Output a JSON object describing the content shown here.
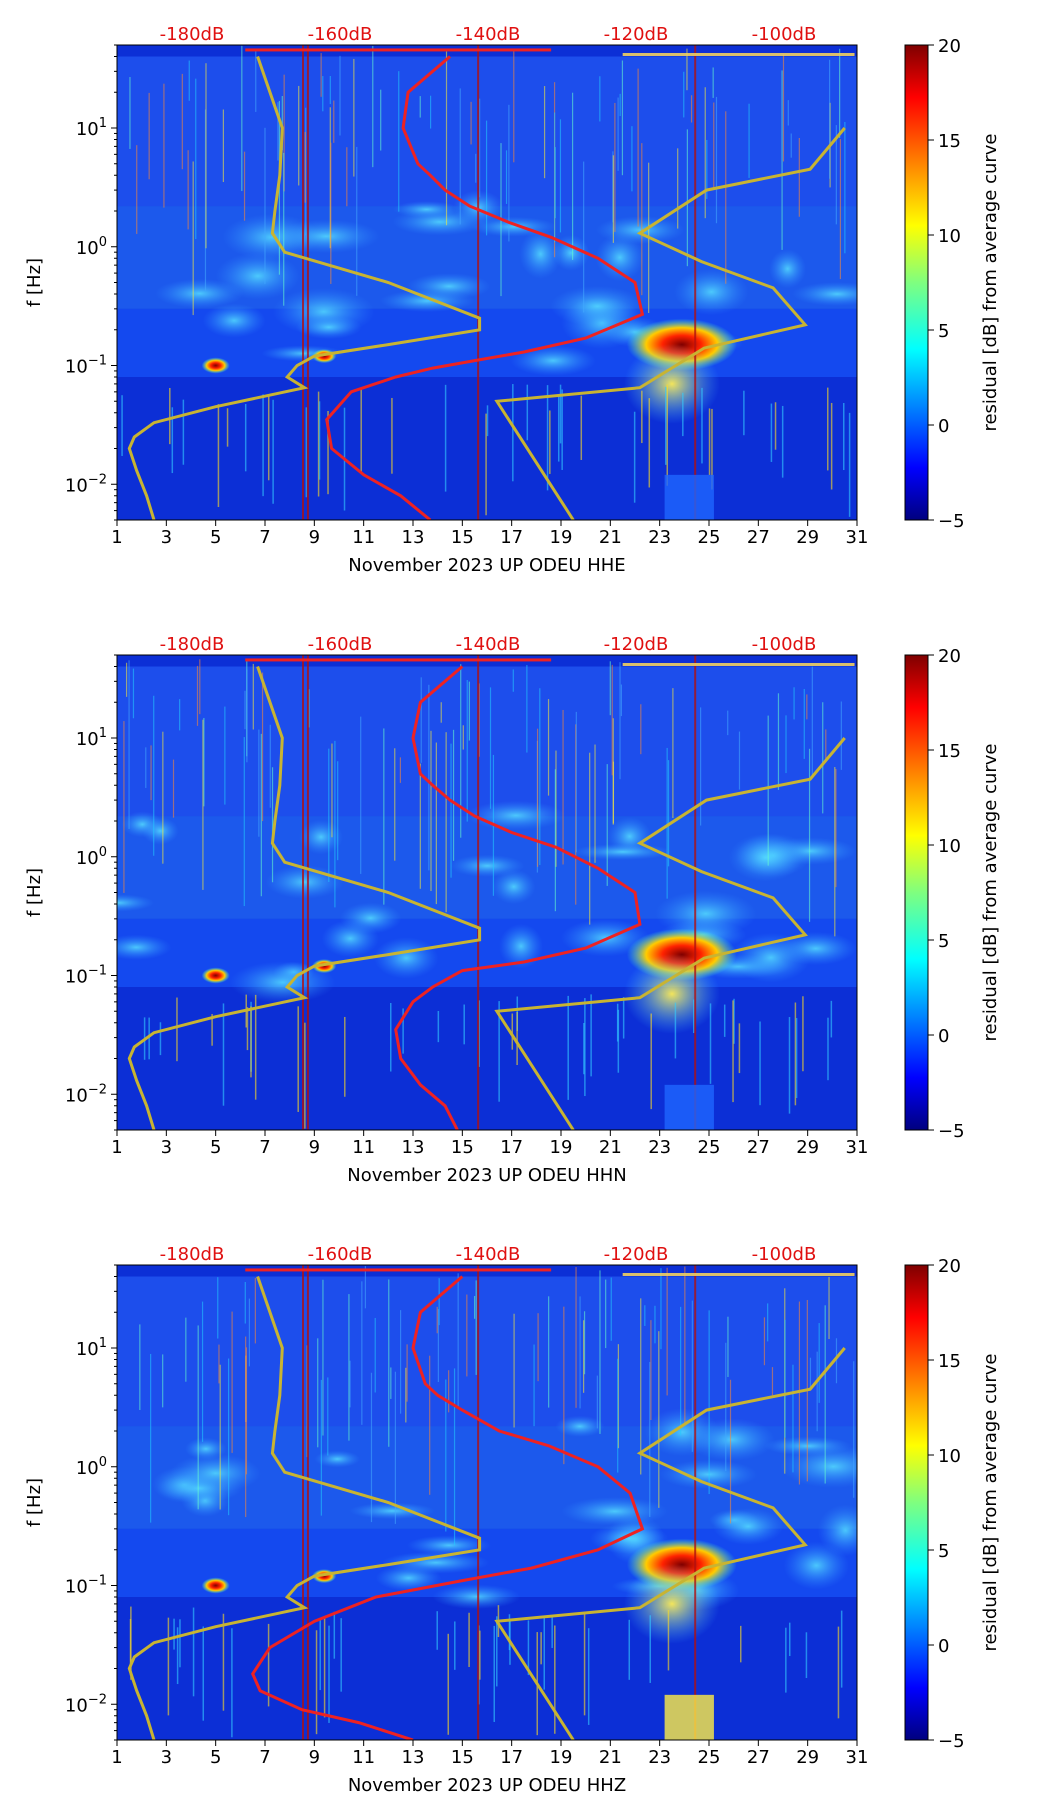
{
  "chart_data": [
    {
      "type": "heatmap",
      "xlabel": "November 2023 UP ODEU  HHE",
      "ylabel": "f [Hz]",
      "x_ticks": [
        "1",
        "3",
        "5",
        "7",
        "9",
        "11",
        "13",
        "15",
        "17",
        "19",
        "21",
        "23",
        "25",
        "27",
        "29",
        "31"
      ],
      "xlim": [
        1,
        31
      ],
      "ylim": [
        0.005,
        50
      ],
      "y_scale": "log",
      "y_ticks": [
        "10^-2",
        "10^-1",
        "10^0",
        "10^1"
      ],
      "top_axis_ticks": [
        "-180dB",
        "-160dB",
        "-140dB",
        "-120dB",
        "-100dB"
      ],
      "colorbar": {
        "label": "residual [dB] from average curve",
        "range": [
          -5,
          20
        ],
        "ticks": [
          "−5",
          "0",
          "5",
          "10",
          "15",
          "20"
        ]
      },
      "series": [
        {
          "color": "#ee2222",
          "x": [
            14.5,
            12.8,
            12.6,
            13.2,
            13.7,
            14.3,
            15.3,
            16.9,
            18.6,
            20.5,
            22.0,
            22.3,
            20.0,
            17.5,
            15.5,
            13.8,
            12.3,
            10.5,
            9.5,
            9.7,
            11.0,
            12.5,
            13.7
          ],
          "y": [
            40,
            20,
            10,
            5,
            4,
            3,
            2.2,
            1.6,
            1.2,
            0.8,
            0.5,
            0.27,
            0.17,
            0.13,
            0.11,
            0.095,
            0.08,
            0.06,
            0.035,
            0.02,
            0.012,
            0.008,
            0.005
          ]
        },
        {
          "color": "#c8b432",
          "x": [
            2.5,
            2.2,
            1.8,
            1.5,
            1.7,
            2.5,
            5.0,
            8.6,
            7.9,
            8.3,
            9.0,
            12.0,
            15.7,
            15.7,
            12.0,
            7.8,
            7.3,
            7.4,
            7.6,
            7.7,
            6.7
          ],
          "y": [
            0.005,
            0.008,
            0.013,
            0.02,
            0.025,
            0.033,
            0.045,
            0.065,
            0.08,
            0.1,
            0.12,
            0.15,
            0.2,
            0.25,
            0.5,
            0.9,
            1.3,
            2,
            4,
            10,
            40
          ]
        },
        {
          "color": "#c8b432",
          "x": [
            19.5,
            16.4,
            16.4,
            22.2,
            24.8,
            28.9,
            27.6,
            24.7,
            22.2,
            24.9,
            29.1,
            30.5
          ],
          "y": [
            0.005,
            0.05,
            0.05,
            0.065,
            0.14,
            0.22,
            0.45,
            0.75,
            1.3,
            3,
            4.5,
            10
          ]
        }
      ]
    },
    {
      "type": "heatmap",
      "xlabel": "November 2023 UP ODEU  HHN",
      "ylabel": "f [Hz]",
      "x_ticks": [
        "1",
        "3",
        "5",
        "7",
        "9",
        "11",
        "13",
        "15",
        "17",
        "19",
        "21",
        "23",
        "25",
        "27",
        "29",
        "31"
      ],
      "xlim": [
        1,
        31
      ],
      "ylim": [
        0.005,
        50
      ],
      "y_scale": "log",
      "y_ticks": [
        "10^-2",
        "10^-1",
        "10^0",
        "10^1"
      ],
      "top_axis_ticks": [
        "-180dB",
        "-160dB",
        "-140dB",
        "-120dB",
        "-100dB"
      ],
      "colorbar": {
        "label": "residual [dB] from average curve",
        "range": [
          -5,
          20
        ],
        "ticks": [
          "−5",
          "0",
          "5",
          "10",
          "15",
          "20"
        ]
      },
      "series": [
        {
          "color": "#ee2222",
          "x": [
            15.0,
            13.3,
            13.0,
            13.3,
            13.8,
            14.5,
            15.5,
            17.0,
            18.8,
            20.5,
            22.0,
            22.2,
            20.0,
            17.5,
            15.0,
            13.8,
            13.0,
            12.3,
            12.5,
            13.3,
            14.3,
            14.8
          ],
          "y": [
            40,
            20,
            10,
            5,
            4,
            3,
            2.2,
            1.6,
            1.2,
            0.8,
            0.5,
            0.27,
            0.17,
            0.13,
            0.11,
            0.08,
            0.06,
            0.035,
            0.02,
            0.012,
            0.008,
            0.005
          ]
        },
        {
          "color": "#c8b432",
          "x": [
            2.5,
            2.2,
            1.8,
            1.5,
            1.7,
            2.5,
            5.0,
            8.6,
            7.9,
            8.3,
            9.0,
            12.0,
            15.7,
            15.7,
            12.0,
            7.8,
            7.3,
            7.4,
            7.6,
            7.7,
            6.7
          ],
          "y": [
            0.005,
            0.008,
            0.013,
            0.02,
            0.025,
            0.033,
            0.045,
            0.065,
            0.08,
            0.1,
            0.12,
            0.15,
            0.2,
            0.25,
            0.5,
            0.9,
            1.3,
            2,
            4,
            10,
            40
          ]
        },
        {
          "color": "#c8b432",
          "x": [
            19.5,
            16.4,
            16.4,
            22.2,
            24.8,
            28.9,
            27.6,
            24.7,
            22.2,
            24.9,
            29.1,
            30.5
          ],
          "y": [
            0.005,
            0.05,
            0.05,
            0.065,
            0.14,
            0.22,
            0.45,
            0.75,
            1.3,
            3,
            4.5,
            10
          ]
        }
      ]
    },
    {
      "type": "heatmap",
      "xlabel": "November 2023 UP ODEU  HHZ",
      "ylabel": "f [Hz]",
      "x_ticks": [
        "1",
        "3",
        "5",
        "7",
        "9",
        "11",
        "13",
        "15",
        "17",
        "19",
        "21",
        "23",
        "25",
        "27",
        "29",
        "31"
      ],
      "xlim": [
        1,
        31
      ],
      "ylim": [
        0.005,
        50
      ],
      "y_scale": "log",
      "y_ticks": [
        "10^-2",
        "10^-1",
        "10^0",
        "10^1"
      ],
      "top_axis_ticks": [
        "-180dB",
        "-160dB",
        "-140dB",
        "-120dB",
        "-100dB"
      ],
      "colorbar": {
        "label": "residual [dB] from average curve",
        "range": [
          -5,
          20
        ],
        "ticks": [
          "−5",
          "0",
          "5",
          "10",
          "15",
          "20"
        ]
      },
      "series": [
        {
          "color": "#ee2222",
          "x": [
            15.0,
            13.3,
            13.0,
            13.5,
            14.0,
            15.0,
            16.5,
            18.5,
            20.5,
            21.8,
            22.3,
            20.5,
            17.8,
            15.0,
            11.5,
            9.0,
            7.2,
            6.5,
            6.8,
            8.5,
            10.8,
            13.0
          ],
          "y": [
            40,
            20,
            10,
            5,
            4,
            3,
            2,
            1.5,
            1,
            0.6,
            0.3,
            0.2,
            0.14,
            0.11,
            0.08,
            0.05,
            0.03,
            0.018,
            0.013,
            0.009,
            0.007,
            0.005
          ]
        },
        {
          "color": "#c8b432",
          "x": [
            2.5,
            2.2,
            1.8,
            1.5,
            1.7,
            2.5,
            5.0,
            8.6,
            7.9,
            8.3,
            9.0,
            12.0,
            15.7,
            15.7,
            12.0,
            7.8,
            7.3,
            7.4,
            7.6,
            7.7,
            6.7
          ],
          "y": [
            0.005,
            0.008,
            0.013,
            0.02,
            0.025,
            0.033,
            0.045,
            0.065,
            0.08,
            0.1,
            0.12,
            0.15,
            0.2,
            0.25,
            0.5,
            0.9,
            1.3,
            2,
            4,
            10,
            40
          ]
        },
        {
          "color": "#c8b432",
          "x": [
            19.5,
            16.4,
            16.4,
            22.2,
            24.8,
            28.9,
            27.6,
            24.7,
            22.2,
            24.9,
            29.1,
            30.5
          ],
          "y": [
            0.005,
            0.05,
            0.05,
            0.065,
            0.14,
            0.22,
            0.45,
            0.75,
            1.3,
            3,
            4.5,
            10
          ]
        }
      ]
    }
  ]
}
